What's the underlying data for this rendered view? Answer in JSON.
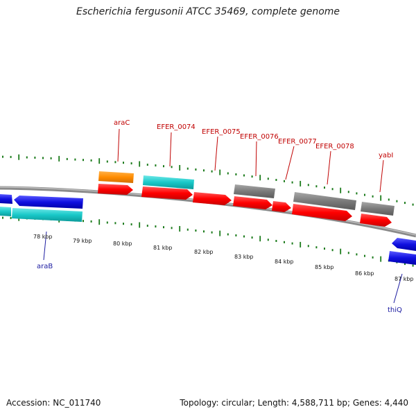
{
  "title": "Escherichia fergusonii ATCC 35469, complete genome",
  "footer": {
    "accession": "Accession: NC_011740",
    "summary": "Topology: circular; Length: 4,588,711 bp; Genes: 4,440"
  },
  "colors": {
    "cds": "#ff0000",
    "gene_grey": "#7a7a7a",
    "gene_cyan": "#19c8c8",
    "gene_orange": "#ff8c00",
    "gene_blue": "#1010e0",
    "backbone": "#888888",
    "tick": "#1a7a1a",
    "label_forward": "#c00000",
    "label_reverse": "#1a1aa0"
  },
  "scale_labels": [
    "78 kbp",
    "79 kbp",
    "80 kbp",
    "81 kbp",
    "82 kbp",
    "83 kbp",
    "84 kbp",
    "85 kbp",
    "86 kbp",
    "87 kbp"
  ],
  "forward_labels": [
    "araC",
    "EFER_0074",
    "EFER_0075",
    "EFER_0076",
    "EFER_0077",
    "EFER_0078",
    "yabI"
  ],
  "reverse_labels": [
    "araB",
    "thiQ"
  ]
}
